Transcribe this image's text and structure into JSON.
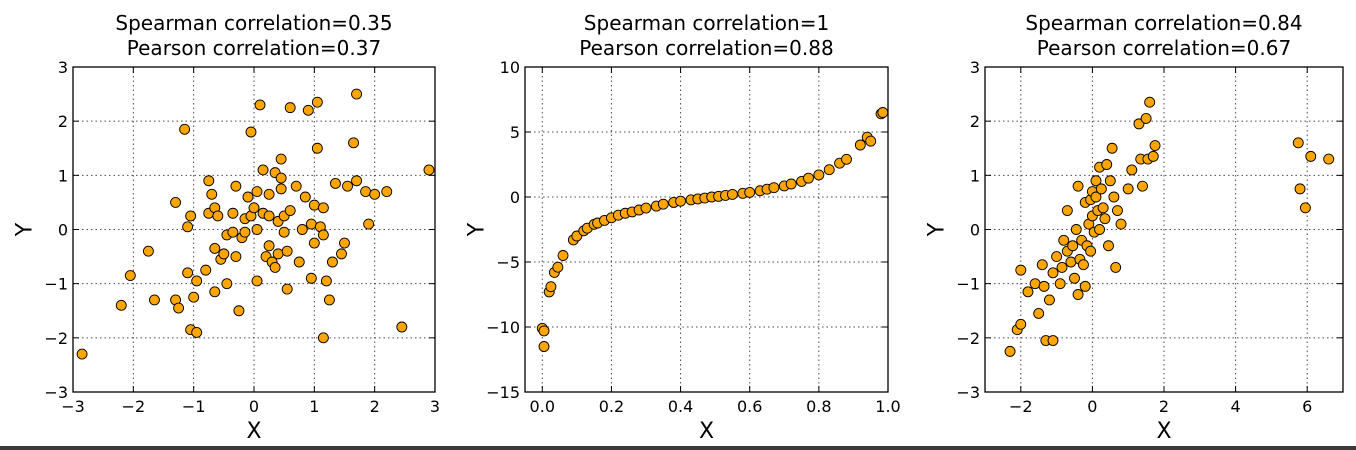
{
  "chart_data": [
    {
      "type": "scatter",
      "title": [
        "Spearman correlation=0.35",
        "Pearson correlation=0.37"
      ],
      "xlabel": "X",
      "ylabel": "Y",
      "xlim": [
        -3,
        3
      ],
      "ylim": [
        -3,
        3
      ],
      "xticks": [
        -3,
        -2,
        -1,
        0,
        1,
        2,
        3
      ],
      "yticks": [
        -3,
        -2,
        -1,
        0,
        1,
        2,
        3
      ],
      "grid": true,
      "marker_color": "#FFA500",
      "points": [
        [
          -2.85,
          -2.3
        ],
        [
          -2.2,
          -1.4
        ],
        [
          -2.05,
          -0.85
        ],
        [
          -1.75,
          -0.4
        ],
        [
          -1.65,
          -1.3
        ],
        [
          -1.3,
          0.5
        ],
        [
          -1.3,
          -1.3
        ],
        [
          -1.25,
          -1.45
        ],
        [
          -1.15,
          1.85
        ],
        [
          -1.1,
          0.05
        ],
        [
          -1.05,
          0.25
        ],
        [
          -1.1,
          -0.8
        ],
        [
          -1.0,
          -1.25
        ],
        [
          -1.05,
          -1.85
        ],
        [
          -0.95,
          -1.9
        ],
        [
          -0.95,
          -0.95
        ],
        [
          -0.8,
          -0.75
        ],
        [
          -0.75,
          0.9
        ],
        [
          -0.7,
          0.65
        ],
        [
          -0.75,
          0.3
        ],
        [
          -0.65,
          0.4
        ],
        [
          -0.6,
          0.25
        ],
        [
          -0.65,
          -0.35
        ],
        [
          -0.65,
          -1.15
        ],
        [
          -0.55,
          -0.55
        ],
        [
          -0.5,
          -0.45
        ],
        [
          -0.45,
          -1.0
        ],
        [
          -0.45,
          -0.1
        ],
        [
          -0.35,
          -0.05
        ],
        [
          -0.35,
          0.3
        ],
        [
          -0.3,
          0.8
        ],
        [
          -0.3,
          -0.5
        ],
        [
          -0.25,
          -1.5
        ],
        [
          -0.2,
          -0.15
        ],
        [
          -0.15,
          -0.05
        ],
        [
          -0.1,
          0.6
        ],
        [
          -0.15,
          0.2
        ],
        [
          -0.05,
          1.8
        ],
        [
          -0.05,
          0.25
        ],
        [
          0.0,
          0.4
        ],
        [
          0.05,
          0.0
        ],
        [
          0.05,
          0.7
        ],
        [
          0.05,
          -0.95
        ],
        [
          0.1,
          2.3
        ],
        [
          0.15,
          1.1
        ],
        [
          0.15,
          0.3
        ],
        [
          0.2,
          -0.5
        ],
        [
          0.25,
          0.65
        ],
        [
          0.25,
          0.25
        ],
        [
          0.25,
          -0.3
        ],
        [
          0.3,
          -0.6
        ],
        [
          0.35,
          -0.7
        ],
        [
          0.35,
          1.05
        ],
        [
          0.4,
          0.15
        ],
        [
          0.4,
          -0.45
        ],
        [
          0.45,
          1.3
        ],
        [
          0.45,
          0.95
        ],
        [
          0.45,
          0.75
        ],
        [
          0.5,
          0.25
        ],
        [
          0.5,
          -0.05
        ],
        [
          0.55,
          -0.4
        ],
        [
          0.55,
          -1.1
        ],
        [
          0.6,
          0.35
        ],
        [
          0.6,
          2.25
        ],
        [
          0.7,
          0.8
        ],
        [
          0.75,
          -0.6
        ],
        [
          0.8,
          0.0
        ],
        [
          0.85,
          0.6
        ],
        [
          0.9,
          2.2
        ],
        [
          0.95,
          -0.9
        ],
        [
          0.95,
          0.1
        ],
        [
          1.0,
          0.45
        ],
        [
          1.0,
          -0.25
        ],
        [
          1.05,
          2.35
        ],
        [
          1.05,
          1.5
        ],
        [
          1.1,
          0.05
        ],
        [
          1.15,
          -0.1
        ],
        [
          1.15,
          0.4
        ],
        [
          1.15,
          -2.0
        ],
        [
          1.2,
          -0.95
        ],
        [
          1.25,
          -1.3
        ],
        [
          1.3,
          -0.6
        ],
        [
          1.35,
          0.85
        ],
        [
          1.45,
          -0.45
        ],
        [
          1.5,
          -0.25
        ],
        [
          1.55,
          0.8
        ],
        [
          1.65,
          1.6
        ],
        [
          1.7,
          2.5
        ],
        [
          1.7,
          0.9
        ],
        [
          1.85,
          0.7
        ],
        [
          1.9,
          0.1
        ],
        [
          2.0,
          0.65
        ],
        [
          2.2,
          0.7
        ],
        [
          2.45,
          -1.8
        ],
        [
          2.9,
          1.1
        ]
      ]
    },
    {
      "type": "scatter",
      "title": [
        "Spearman correlation=1",
        "Pearson correlation=0.88"
      ],
      "xlabel": "X",
      "ylabel": "Y",
      "xlim": [
        -0.05,
        1.0
      ],
      "ylim": [
        -15,
        10
      ],
      "xticks": [
        0.0,
        0.2,
        0.4,
        0.6,
        0.8,
        1.0
      ],
      "xtick_labels": [
        "0.0",
        "0.2",
        "0.4",
        "0.6",
        "0.8",
        "1.0"
      ],
      "yticks": [
        -15,
        -10,
        -5,
        0,
        5,
        10
      ],
      "grid": true,
      "marker_color": "#FFA500",
      "points": [
        [
          0.0,
          -10.1
        ],
        [
          0.005,
          -11.5
        ],
        [
          0.005,
          -10.3
        ],
        [
          0.02,
          -7.3
        ],
        [
          0.025,
          -6.9
        ],
        [
          0.035,
          -5.8
        ],
        [
          0.045,
          -5.4
        ],
        [
          0.06,
          -4.5
        ],
        [
          0.09,
          -3.3
        ],
        [
          0.1,
          -3.0
        ],
        [
          0.12,
          -2.6
        ],
        [
          0.13,
          -2.4
        ],
        [
          0.15,
          -2.1
        ],
        [
          0.16,
          -2.0
        ],
        [
          0.18,
          -1.8
        ],
        [
          0.2,
          -1.6
        ],
        [
          0.22,
          -1.4
        ],
        [
          0.24,
          -1.25
        ],
        [
          0.26,
          -1.15
        ],
        [
          0.28,
          -1.0
        ],
        [
          0.3,
          -0.85
        ],
        [
          0.33,
          -0.7
        ],
        [
          0.35,
          -0.55
        ],
        [
          0.38,
          -0.42
        ],
        [
          0.4,
          -0.32
        ],
        [
          0.43,
          -0.22
        ],
        [
          0.45,
          -0.15
        ],
        [
          0.47,
          -0.08
        ],
        [
          0.49,
          0.0
        ],
        [
          0.51,
          0.05
        ],
        [
          0.53,
          0.12
        ],
        [
          0.55,
          0.2
        ],
        [
          0.58,
          0.28
        ],
        [
          0.6,
          0.35
        ],
        [
          0.63,
          0.48
        ],
        [
          0.65,
          0.6
        ],
        [
          0.67,
          0.72
        ],
        [
          0.7,
          0.85
        ],
        [
          0.72,
          1.0
        ],
        [
          0.75,
          1.2
        ],
        [
          0.77,
          1.45
        ],
        [
          0.8,
          1.7
        ],
        [
          0.83,
          2.1
        ],
        [
          0.86,
          2.6
        ],
        [
          0.88,
          2.9
        ],
        [
          0.92,
          4.0
        ],
        [
          0.94,
          4.6
        ],
        [
          0.95,
          4.3
        ],
        [
          0.98,
          6.4
        ],
        [
          0.985,
          6.5
        ]
      ]
    },
    {
      "type": "scatter",
      "title": [
        "Spearman correlation=0.84",
        "Pearson correlation=0.67"
      ],
      "xlabel": "X",
      "ylabel": "Y",
      "xlim": [
        -3,
        7
      ],
      "ylim": [
        -3,
        3
      ],
      "xticks": [
        -2,
        0,
        2,
        4,
        6
      ],
      "yticks": [
        -3,
        -2,
        -1,
        0,
        1,
        2,
        3
      ],
      "grid": true,
      "marker_color": "#FFA500",
      "points": [
        [
          -2.3,
          -2.25
        ],
        [
          -2.1,
          -1.85
        ],
        [
          -2.0,
          -1.75
        ],
        [
          -2.0,
          -0.75
        ],
        [
          -1.8,
          -1.15
        ],
        [
          -1.6,
          -1.0
        ],
        [
          -1.5,
          -1.55
        ],
        [
          -1.4,
          -0.65
        ],
        [
          -1.35,
          -1.05
        ],
        [
          -1.3,
          -2.05
        ],
        [
          -1.2,
          -1.3
        ],
        [
          -1.1,
          -2.05
        ],
        [
          -1.1,
          -0.8
        ],
        [
          -1.0,
          -0.5
        ],
        [
          -0.9,
          -1.0
        ],
        [
          -0.85,
          -0.7
        ],
        [
          -0.8,
          -0.2
        ],
        [
          -0.7,
          0.35
        ],
        [
          -0.7,
          -0.4
        ],
        [
          -0.6,
          -0.6
        ],
        [
          -0.55,
          -0.3
        ],
        [
          -0.5,
          -0.9
        ],
        [
          -0.45,
          0.0
        ],
        [
          -0.4,
          -1.2
        ],
        [
          -0.4,
          0.8
        ],
        [
          -0.35,
          -0.55
        ],
        [
          -0.3,
          -0.2
        ],
        [
          -0.25,
          -0.65
        ],
        [
          -0.2,
          0.5
        ],
        [
          -0.2,
          -1.05
        ],
        [
          -0.15,
          -0.3
        ],
        [
          -0.1,
          0.1
        ],
        [
          -0.05,
          0.55
        ],
        [
          -0.05,
          -0.4
        ],
        [
          0.0,
          0.25
        ],
        [
          0.0,
          0.7
        ],
        [
          0.05,
          -0.05
        ],
        [
          0.1,
          0.6
        ],
        [
          0.1,
          0.9
        ],
        [
          0.15,
          0.35
        ],
        [
          0.2,
          1.15
        ],
        [
          0.2,
          0.0
        ],
        [
          0.25,
          0.75
        ],
        [
          0.3,
          0.4
        ],
        [
          0.35,
          0.2
        ],
        [
          0.4,
          1.2
        ],
        [
          0.45,
          -0.3
        ],
        [
          0.5,
          0.9
        ],
        [
          0.55,
          1.5
        ],
        [
          0.6,
          0.6
        ],
        [
          0.65,
          -0.7
        ],
        [
          0.7,
          0.35
        ],
        [
          0.8,
          0.1
        ],
        [
          1.0,
          0.75
        ],
        [
          1.1,
          1.1
        ],
        [
          1.3,
          1.95
        ],
        [
          1.35,
          1.3
        ],
        [
          1.4,
          0.8
        ],
        [
          1.5,
          2.05
        ],
        [
          1.55,
          1.3
        ],
        [
          1.6,
          2.35
        ],
        [
          1.7,
          1.35
        ],
        [
          1.75,
          1.55
        ],
        [
          5.75,
          1.6
        ],
        [
          5.8,
          0.75
        ],
        [
          5.95,
          0.4
        ],
        [
          6.1,
          1.35
        ],
        [
          6.6,
          1.3
        ]
      ]
    }
  ]
}
